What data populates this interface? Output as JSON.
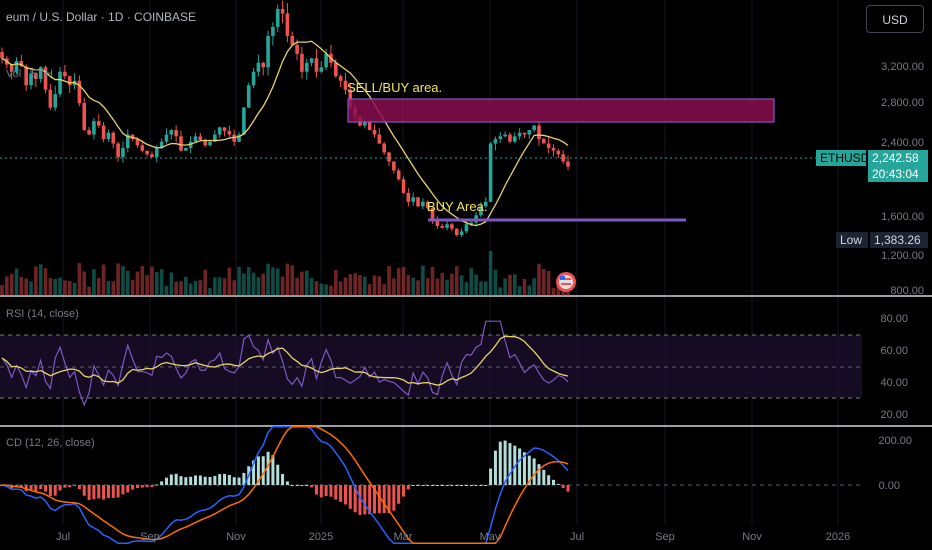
{
  "header": {
    "symbol_title": "eum / U.S. Dollar · 1D · COINBASE",
    "currency_button": "USD",
    "volume_legend": "Vol · ETH"
  },
  "price_axis": {
    "ticks": [
      "3,200.00",
      "2,800.00",
      "2,400.00",
      "1,600.00",
      "1,200.00",
      "800.00"
    ]
  },
  "price_tags": {
    "symbol": "ETHUSD",
    "last_price": "2,242.58",
    "countdown": "20:43:04",
    "low_label": "Low",
    "low_value": "1,383.26"
  },
  "annotations": {
    "sell_buy_area": "SELL/BUY area.",
    "buy_area": "BUY Area."
  },
  "rsi": {
    "legend": "RSI (14, close)",
    "ticks": [
      "80.00",
      "60.00",
      "40.00",
      "20.00"
    ]
  },
  "macd": {
    "legend": "CD (12, 26, close)",
    "ticks": [
      "200.00",
      "0.00"
    ]
  },
  "time_axis": {
    "labels": [
      "Jul",
      "Sep",
      "Nov",
      "2025",
      "Mar",
      "May",
      "Jul",
      "Sep",
      "Nov",
      "2026"
    ]
  },
  "colors": {
    "up": "#26a69a",
    "down": "#ef5350",
    "ma": "#e6d26a",
    "rsi_line": "#7e57c2",
    "zone_fill": "#880e4f",
    "zone_border": "#7e57c2",
    "buy_line": "#7e57c2",
    "macd_line": "#2962ff",
    "signal_line": "#ff6d00"
  },
  "chart_data": {
    "type": "candlestick",
    "interval": "1D",
    "price_axis_range": [
      800,
      3400
    ],
    "series_closes": [
      3450,
      3380,
      3300,
      3420,
      3360,
      3150,
      3280,
      3220,
      3350,
      3100,
      2900,
      3050,
      3300,
      3250,
      3150,
      3200,
      2950,
      2650,
      2600,
      2750,
      2700,
      2550,
      2620,
      2500,
      2350,
      2450,
      2600,
      2550,
      2480,
      2420,
      2380,
      2350,
      2450,
      2520,
      2600,
      2650,
      2580,
      2420,
      2450,
      2520,
      2580,
      2540,
      2480,
      2520,
      2600,
      2680,
      2640,
      2600,
      2520,
      2600,
      2900,
      3150,
      3300,
      3400,
      3350,
      3700,
      3800,
      4000,
      3950,
      3700,
      3600,
      3500,
      3300,
      3400,
      3450,
      3300,
      3350,
      3500,
      3400,
      3250,
      3200,
      3100,
      2900,
      2800,
      2700,
      2750,
      2650,
      2600,
      2500,
      2400,
      2300,
      2200,
      2100,
      1950,
      1850,
      1900,
      1800,
      1850,
      1780,
      1650,
      1580,
      1560,
      1600,
      1550,
      1480,
      1520,
      1600,
      1620,
      1700,
      1800,
      1850,
      2500,
      2550,
      2580,
      2600,
      2520,
      2580,
      2620,
      2600,
      2650,
      2700,
      2550,
      2500,
      2450,
      2420,
      2380,
      2300,
      2242
    ],
    "ma_line": true,
    "zones": [
      {
        "label": "SELL/BUY area.",
        "from": 2550,
        "to": 2850
      },
      {
        "label": "BUY Area.",
        "level": 1520
      }
    ],
    "rsi_range": [
      20,
      80
    ],
    "macd_range": [
      -200,
      200
    ]
  }
}
